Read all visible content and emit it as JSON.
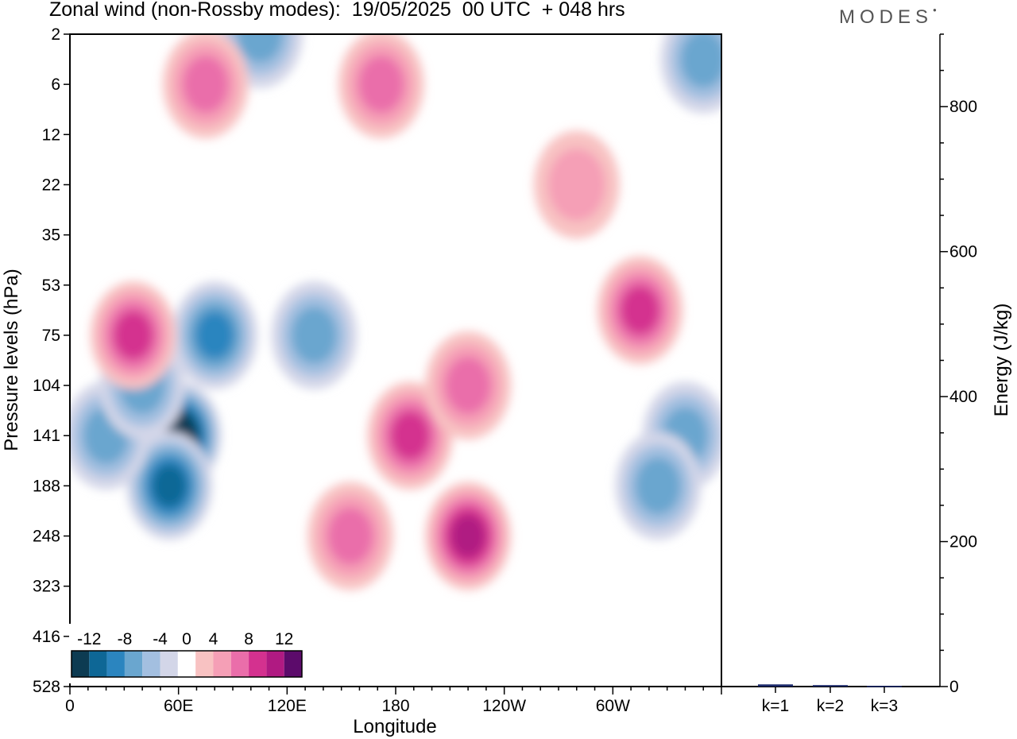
{
  "title": "Zonal wind (non-Rossby modes):  19/05/2025  00 UTC  + 048 hrs",
  "brand": "MODES",
  "chart_data": [
    {
      "type": "heatmap",
      "xlabel": "Longitude",
      "ylabel": "Pressure levels (hPa)",
      "x_ticks": [
        "0",
        "60E",
        "120E",
        "180",
        "120W",
        "60W"
      ],
      "y_ticks": [
        "2",
        "6",
        "12",
        "22",
        "35",
        "53",
        "75",
        "104",
        "141",
        "188",
        "248",
        "323",
        "416",
        "528"
      ],
      "colorbar": {
        "tick_labels": [
          "-12",
          "-8",
          "-4",
          "0",
          "4",
          "8",
          "12"
        ],
        "levels": [
          -14,
          -12,
          -10,
          -8,
          -6,
          -4,
          -2,
          2,
          4,
          6,
          8,
          10,
          12,
          14
        ],
        "colors": [
          "#0d3b52",
          "#0e6796",
          "#2b85bf",
          "#6aa6cf",
          "#a3bfe0",
          "#d3d6e8",
          "#ffffff",
          "#f8c2c2",
          "#f59fb6",
          "#ea6eaa",
          "#d4318f",
          "#b01a82",
          "#5c0b6b"
        ]
      },
      "features": [
        {
          "lon": 60,
          "level": 141,
          "value": -14
        },
        {
          "lon": 55,
          "level": 188,
          "value": -10
        },
        {
          "lon": 20,
          "level": 141,
          "value": -6
        },
        {
          "lon": 40,
          "level": 104,
          "value": -6
        },
        {
          "lon": 80,
          "level": 75,
          "value": -8
        },
        {
          "lon": 135,
          "level": 75,
          "value": -6
        },
        {
          "lon": 105,
          "level": 2,
          "value": -6
        },
        {
          "lon": 350,
          "level": 4,
          "value": -6
        },
        {
          "lon": 340,
          "level": 141,
          "value": -6
        },
        {
          "lon": 325,
          "level": 188,
          "value": -6
        },
        {
          "lon": 35,
          "level": 75,
          "value": 8
        },
        {
          "lon": 188,
          "level": 141,
          "value": 8
        },
        {
          "lon": 220,
          "level": 104,
          "value": 6
        },
        {
          "lon": 220,
          "level": 248,
          "value": 10
        },
        {
          "lon": 315,
          "level": 64,
          "value": 8
        },
        {
          "lon": 75,
          "level": 6,
          "value": 6
        },
        {
          "lon": 172,
          "level": 6,
          "value": 6
        },
        {
          "lon": 155,
          "level": 248,
          "value": 6
        },
        {
          "lon": 280,
          "level": 22,
          "value": 4
        }
      ]
    },
    {
      "type": "bar",
      "categories": [
        "k=1",
        "k=2",
        "k=3"
      ],
      "values": [
        3,
        2,
        1
      ],
      "ylabel": "Energy (J/kg)",
      "ylim": [
        0,
        900
      ],
      "y_ticks": [
        0,
        200,
        400,
        600,
        800
      ]
    }
  ]
}
